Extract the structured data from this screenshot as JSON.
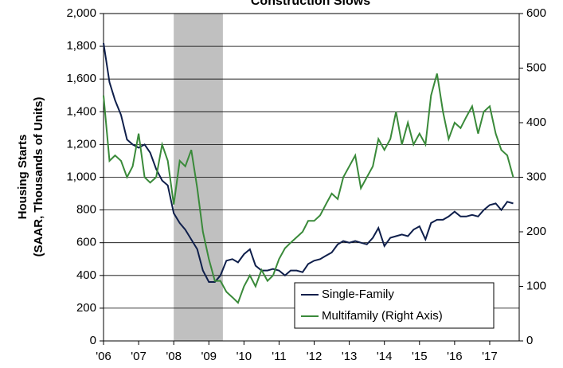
{
  "chart_data": {
    "type": "line",
    "title": "Construction Slows",
    "ylabel": [
      "Housing Starts",
      "(SAAR, Thousands of Units)"
    ],
    "x": [
      2006,
      2006.17,
      2006.33,
      2006.5,
      2006.67,
      2006.83,
      2007,
      2007.17,
      2007.33,
      2007.5,
      2007.67,
      2007.83,
      2008,
      2008.17,
      2008.33,
      2008.5,
      2008.67,
      2008.83,
      2009,
      2009.17,
      2009.33,
      2009.5,
      2009.67,
      2009.83,
      2010,
      2010.17,
      2010.33,
      2010.5,
      2010.67,
      2010.83,
      2011,
      2011.17,
      2011.33,
      2011.5,
      2011.67,
      2011.83,
      2012,
      2012.17,
      2012.33,
      2012.5,
      2012.67,
      2012.83,
      2013,
      2013.17,
      2013.33,
      2013.5,
      2013.67,
      2013.83,
      2014,
      2014.17,
      2014.33,
      2014.5,
      2014.67,
      2014.83,
      2015,
      2015.17,
      2015.33,
      2015.5,
      2015.67,
      2015.83,
      2016,
      2016.17,
      2016.33,
      2016.5,
      2016.67,
      2016.83,
      2017,
      2017.17,
      2017.33,
      2017.5,
      2017.67
    ],
    "series": [
      {
        "name": "Single-Family",
        "color": "#0f1f4b",
        "axis": "y",
        "values": [
          1820,
          1580,
          1470,
          1380,
          1230,
          1200,
          1180,
          1200,
          1150,
          1050,
          980,
          950,
          780,
          720,
          680,
          620,
          560,
          430,
          360,
          360,
          400,
          490,
          500,
          480,
          530,
          560,
          460,
          430,
          430,
          440,
          430,
          400,
          430,
          430,
          420,
          470,
          490,
          500,
          520,
          540,
          590,
          610,
          600,
          610,
          600,
          590,
          630,
          690,
          580,
          630,
          640,
          650,
          640,
          680,
          700,
          620,
          720,
          740,
          740,
          760,
          790,
          760,
          760,
          770,
          760,
          800,
          830,
          840,
          800,
          850,
          840
        ]
      },
      {
        "name": "Multifamily (Right Axis)",
        "color": "#3a8a3a",
        "axis": "y2",
        "values": [
          450,
          330,
          340,
          330,
          300,
          320,
          380,
          300,
          290,
          300,
          360,
          330,
          250,
          330,
          320,
          350,
          280,
          200,
          150,
          110,
          110,
          90,
          80,
          70,
          100,
          120,
          100,
          130,
          110,
          120,
          150,
          170,
          180,
          190,
          200,
          220,
          220,
          230,
          250,
          270,
          260,
          300,
          320,
          340,
          280,
          300,
          320,
          370,
          350,
          370,
          420,
          360,
          400,
          360,
          380,
          360,
          450,
          490,
          420,
          370,
          400,
          390,
          410,
          430,
          380,
          420,
          430,
          380,
          350,
          340,
          300
        ]
      }
    ],
    "shaded_region": [
      2008,
      2009.4
    ],
    "shade_color": "#c0c0c0",
    "xlim": [
      2006,
      2017.84
    ],
    "xticks": [
      {
        "value": 2006,
        "label": "'06"
      },
      {
        "value": 2007,
        "label": "'07"
      },
      {
        "value": 2008,
        "label": "'08"
      },
      {
        "value": 2009,
        "label": "'09"
      },
      {
        "value": 2010,
        "label": "'10"
      },
      {
        "value": 2011,
        "label": "'11"
      },
      {
        "value": 2012,
        "label": "'12"
      },
      {
        "value": 2013,
        "label": "'13"
      },
      {
        "value": 2014,
        "label": "'14"
      },
      {
        "value": 2015,
        "label": "'15"
      },
      {
        "value": 2016,
        "label": "'16"
      },
      {
        "value": 2017,
        "label": "'17"
      }
    ],
    "ylim": [
      0,
      2000
    ],
    "yticks": [
      0,
      {
        "value": 200,
        "label": "200"
      },
      400,
      600,
      800,
      {
        "value": 1000,
        "label": "1,000"
      },
      {
        "value": 1200,
        "label": "1,200"
      },
      {
        "value": 1400,
        "label": "1,400"
      },
      {
        "value": 1600,
        "label": "1,600"
      },
      {
        "value": 1800,
        "label": "1,800"
      },
      {
        "value": 2000,
        "label": "2,000"
      }
    ],
    "y2lim": [
      0,
      600
    ],
    "y2ticks": [
      0,
      100,
      200,
      300,
      400,
      500,
      600
    ],
    "grid": true,
    "legend": "lower right"
  }
}
